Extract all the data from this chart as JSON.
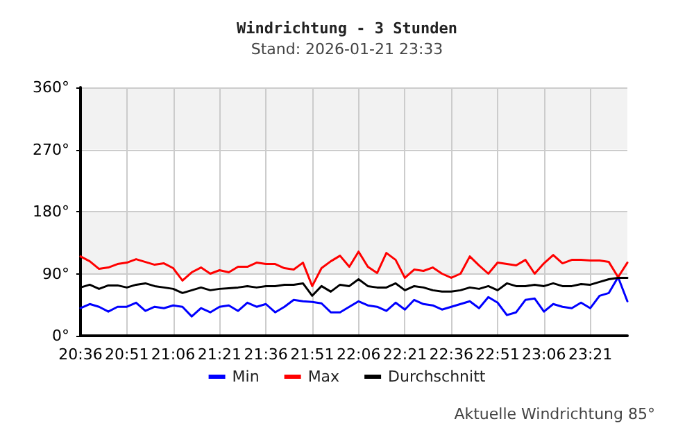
{
  "chart_data": {
    "type": "line",
    "title": "Windrichtung - 3 Stunden",
    "subtitle": "Stand: 2026-01-21 23:33",
    "x": [
      20.6,
      20.65,
      20.7,
      20.75,
      20.8,
      20.85,
      20.9,
      20.95,
      21.0,
      21.05,
      21.1,
      21.15,
      21.2,
      21.25,
      21.3,
      21.35,
      21.4,
      21.45,
      21.5,
      21.55,
      21.6,
      21.65,
      21.7,
      21.75,
      21.8,
      21.85,
      21.9,
      21.95,
      22.0,
      22.05,
      22.1,
      22.15,
      22.2,
      22.25,
      22.3,
      22.35,
      22.4,
      22.45,
      22.5,
      22.55,
      22.6,
      22.65,
      22.7,
      22.75,
      22.8,
      22.85,
      22.9,
      22.95,
      23.0,
      23.05,
      23.1,
      23.15,
      23.2,
      23.25,
      23.3,
      23.35,
      23.4,
      23.45,
      23.5,
      23.55
    ],
    "series": [
      {
        "name": "Min",
        "color": "#0000ff",
        "values": [
          40,
          46,
          42,
          35,
          42,
          42,
          48,
          36,
          42,
          40,
          44,
          42,
          28,
          40,
          34,
          42,
          44,
          36,
          48,
          42,
          46,
          34,
          42,
          52,
          50,
          49,
          47,
          34,
          34,
          42,
          50,
          44,
          42,
          36,
          48,
          38,
          52,
          46,
          44,
          38,
          42,
          46,
          50,
          40,
          56,
          48,
          30,
          34,
          52,
          54,
          35,
          46,
          42,
          40,
          48,
          40,
          58,
          62,
          85,
          50
        ]
      },
      {
        "name": "Max",
        "color": "#ff0000",
        "values": [
          115,
          108,
          97,
          99,
          104,
          106,
          111,
          107,
          103,
          105,
          98,
          80,
          92,
          99,
          90,
          95,
          92,
          100,
          100,
          106,
          104,
          104,
          98,
          96,
          106,
          72,
          98,
          108,
          116,
          100,
          122,
          100,
          91,
          120,
          110,
          84,
          96,
          94,
          99,
          90,
          84,
          90,
          115,
          102,
          90,
          106,
          104,
          102,
          110,
          90,
          105,
          117,
          105,
          110,
          110,
          109,
          109,
          107,
          85,
          106
        ]
      },
      {
        "name": "Durchschnitt",
        "color": "#000000",
        "values": [
          70,
          74,
          68,
          73,
          73,
          70,
          74,
          76,
          72,
          70,
          68,
          62,
          66,
          70,
          66,
          68,
          69,
          70,
          72,
          70,
          72,
          72,
          74,
          74,
          76,
          58,
          72,
          64,
          74,
          72,
          82,
          72,
          70,
          70,
          76,
          66,
          72,
          70,
          66,
          64,
          64,
          66,
          70,
          68,
          72,
          66,
          76,
          72,
          72,
          74,
          72,
          76,
          72,
          72,
          75,
          74,
          78,
          82,
          84,
          84
        ]
      }
    ],
    "xlim": [
      20.6,
      23.55
    ],
    "xticks": [
      {
        "value": 20.6,
        "label": "20:36"
      },
      {
        "value": 20.85,
        "label": "20:51"
      },
      {
        "value": 21.1,
        "label": "21:06"
      },
      {
        "value": 21.35,
        "label": "21:21"
      },
      {
        "value": 21.6,
        "label": "21:36"
      },
      {
        "value": 21.85,
        "label": "21:51"
      },
      {
        "value": 22.1,
        "label": "22:06"
      },
      {
        "value": 22.35,
        "label": "22:21"
      },
      {
        "value": 22.6,
        "label": "22:36"
      },
      {
        "value": 22.85,
        "label": "22:51"
      },
      {
        "value": 23.1,
        "label": "23:06"
      },
      {
        "value": 23.35,
        "label": "23:21"
      }
    ],
    "ylim": [
      0,
      360
    ],
    "yticks": [
      {
        "value": 0,
        "label": "0°"
      },
      {
        "value": 90,
        "label": "90°"
      },
      {
        "value": 180,
        "label": "180°"
      },
      {
        "value": 270,
        "label": "270°"
      },
      {
        "value": 360,
        "label": "360°"
      }
    ],
    "grid": true,
    "legend": "bottom",
    "marker": "none",
    "line_style": "solid",
    "annotations": [
      "Aktuelle Windrichtung 85°"
    ]
  }
}
